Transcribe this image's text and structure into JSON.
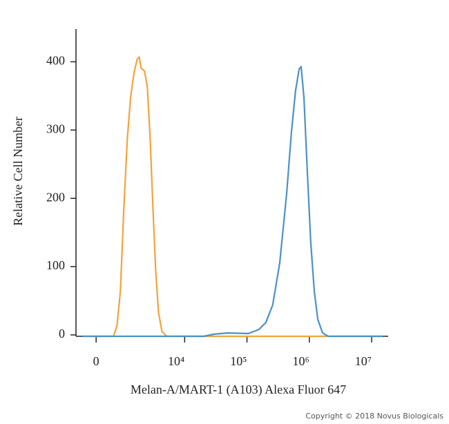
{
  "chart_data": {
    "type": "line",
    "x_label": "Melan-A/MART-1 (A103) Alexa Fluor 647",
    "y_label": "Relative Cell Number",
    "annotation": "Copyright © 2018 Novus Biologicals",
    "xscale": "biexponential",
    "xlim": [
      -500,
      17500000
    ],
    "xticks": [
      0,
      {
        "value": 10000,
        "label": "10⁴"
      },
      {
        "value": 100000,
        "label": "10⁵"
      },
      {
        "value": 1000000,
        "label": "10⁶"
      },
      {
        "value": 10000000,
        "label": "10⁷"
      }
    ],
    "ylim": [
      0,
      450
    ],
    "yticks": [
      0,
      100,
      200,
      300,
      400
    ],
    "series": [
      {
        "color": "#f2a33a",
        "x": [
          -400,
          521,
          644,
          779,
          924,
          1083,
          1257,
          1448,
          1656,
          1791,
          1935,
          2218,
          2470,
          2749,
          3055,
          3392,
          3769,
          4295,
          5172,
          15000000
        ],
        "values": [
          0,
          0,
          15,
          66,
          188,
          289,
          350,
          386,
          406,
          409,
          393,
          388,
          365,
          289,
          188,
          96,
          36,
          7,
          0,
          0
        ]
      },
      {
        "color": "#4a90c8",
        "x": [
          -400,
          20080,
          29450,
          49100,
          105800,
          155300,
          200600,
          259100,
          334400,
          431700,
          516700,
          602700,
          685000,
          738800,
          819000,
          930700,
          1056000,
          1202000,
          1366000,
          1633000,
          2004000,
          15000000
        ],
        "values": [
          0,
          0,
          3,
          5,
          4,
          10,
          20,
          46,
          107,
          208,
          299,
          360,
          391,
          395,
          350,
          239,
          137,
          66,
          25,
          5,
          0,
          0
        ]
      }
    ]
  }
}
